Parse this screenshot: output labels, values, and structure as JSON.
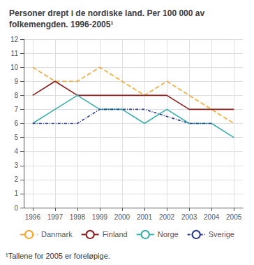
{
  "chart_data": {
    "type": "line",
    "title": "Personer drept i de nordiske land. Per 100 000 av\nfolkemengden. 1996-2005¹",
    "annotations": [
      "¹Tallene for 2005 er foreløpige."
    ],
    "x": [
      1996,
      1997,
      1998,
      1999,
      2000,
      2001,
      2002,
      2003,
      2004,
      2005
    ],
    "series": [
      {
        "name": "Danmark",
        "color": "#f4a732",
        "line_style": "dashed",
        "values": [
          10.0,
          9.0,
          9.0,
          10.0,
          9.0,
          8.0,
          9.0,
          8.0,
          7.0,
          6.0
        ]
      },
      {
        "name": "Finland",
        "color": "#8b1a1a",
        "line_style": "solid",
        "values": [
          8.0,
          9.0,
          8.0,
          8.0,
          8.0,
          8.0,
          8.0,
          7.0,
          7.0,
          7.0
        ]
      },
      {
        "name": "Norge",
        "color": "#3aada8",
        "line_style": "solid",
        "values": [
          6.0,
          7.0,
          8.0,
          7.0,
          7.0,
          6.0,
          7.0,
          6.0,
          6.0,
          5.0
        ]
      },
      {
        "name": "Sverige",
        "color": "#2a3a8c",
        "line_style": "dashdot",
        "values": [
          6.0,
          6.0,
          6.0,
          7.0,
          7.0,
          7.0,
          6.5,
          6.0,
          6.0,
          null
        ]
      }
    ],
    "xlim": [
      1995.6,
      2005.4
    ],
    "xticks": [
      1996,
      1997,
      1998,
      1999,
      2000,
      2001,
      2002,
      2003,
      2004,
      2005
    ],
    "ylim": [
      0,
      12
    ],
    "yticks": [
      0,
      1,
      2,
      3,
      4,
      5,
      6,
      7,
      8,
      9,
      10,
      11,
      12
    ],
    "grid": true,
    "legend": "bottom"
  }
}
